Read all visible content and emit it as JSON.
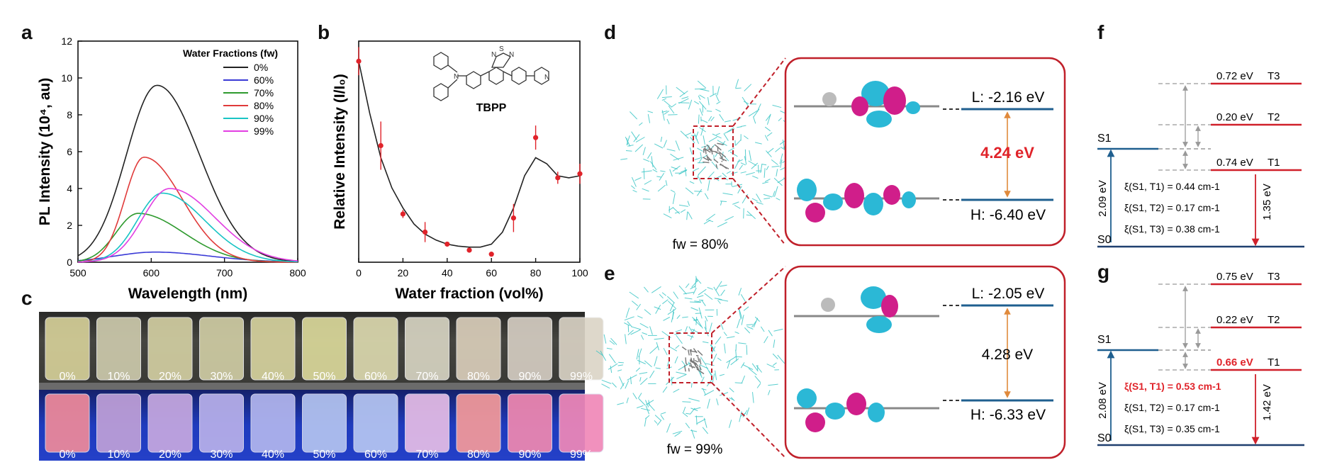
{
  "panel_labels": [
    "a",
    "b",
    "c",
    "d",
    "e",
    "f",
    "g"
  ],
  "chart_data": [
    {
      "type": "line",
      "panel": "a",
      "xlabel": "Wavelength (nm)",
      "ylabel": "PL Intensity (10⁴, au)",
      "xlim": [
        500,
        800
      ],
      "ylim": [
        0,
        12
      ],
      "xticks": [
        500,
        600,
        700,
        800
      ],
      "yticks": [
        0,
        2,
        4,
        6,
        8,
        10,
        12
      ],
      "legend_title": "Water Fractions (fw)",
      "series": [
        {
          "name": "0%",
          "color": "#222222",
          "peak_x": 608,
          "peak_y": 9.6,
          "sigma_l": 42,
          "sigma_r": 58
        },
        {
          "name": "60%",
          "color": "#3a3ad6",
          "peak_x": 605,
          "peak_y": 0.55,
          "sigma_l": 55,
          "sigma_r": 75
        },
        {
          "name": "70%",
          "color": "#2e9a2e",
          "peak_x": 582,
          "peak_y": 2.65,
          "sigma_l": 30,
          "sigma_r": 62
        },
        {
          "name": "80%",
          "color": "#e03a3a",
          "peak_x": 590,
          "peak_y": 5.7,
          "sigma_l": 26,
          "sigma_r": 52
        },
        {
          "name": "90%",
          "color": "#19c4c4",
          "peak_x": 615,
          "peak_y": 3.75,
          "sigma_l": 34,
          "sigma_r": 58
        },
        {
          "name": "99%",
          "color": "#e23ee2",
          "peak_x": 625,
          "peak_y": 4.0,
          "sigma_l": 36,
          "sigma_r": 62
        }
      ]
    },
    {
      "type": "scatter",
      "panel": "b",
      "xlabel": "Water fraction (vol%)",
      "ylabel": "Relative Intensity (I/I₀)",
      "xlim": [
        0,
        100
      ],
      "xticks": [
        0,
        20,
        40,
        60,
        80,
        100
      ],
      "ylim": [
        0,
        1.1
      ],
      "x": [
        0,
        10,
        20,
        30,
        40,
        50,
        60,
        70,
        80,
        90,
        100
      ],
      "y": [
        1.0,
        0.58,
        0.24,
        0.15,
        0.09,
        0.06,
        0.04,
        0.22,
        0.62,
        0.42,
        0.44
      ],
      "err": [
        0.07,
        0.12,
        0.02,
        0.05,
        0.01,
        0.01,
        0.01,
        0.07,
        0.06,
        0.03,
        0.05
      ],
      "fit_x": [
        0,
        5,
        10,
        15,
        20,
        25,
        30,
        35,
        40,
        45,
        50,
        55,
        60,
        65,
        70,
        75,
        80,
        85,
        90,
        95,
        100
      ],
      "fit_y": [
        1.0,
        0.74,
        0.52,
        0.37,
        0.27,
        0.19,
        0.14,
        0.11,
        0.09,
        0.08,
        0.075,
        0.075,
        0.09,
        0.15,
        0.27,
        0.43,
        0.52,
        0.49,
        0.43,
        0.42,
        0.43
      ],
      "compound": "TBPP"
    }
  ],
  "panel_c": {
    "labels": [
      "0%",
      "10%",
      "20%",
      "30%",
      "40%",
      "50%",
      "60%",
      "70%",
      "80%",
      "90%",
      "99%"
    ],
    "daylight_colors": [
      "#d8d29a",
      "#cfccae",
      "#d5d1a4",
      "#d2cfa6",
      "#d9d5a0",
      "#dddb9c",
      "#dedbb0",
      "#d9d6c4",
      "#dcd0bc",
      "#d7cfc4",
      "#dbd4c6"
    ],
    "uv_colors": [
      "#f08a9a",
      "#bfa0d8",
      "#c6a8e0",
      "#b8b0ea",
      "#b2b6ee",
      "#b4c4f0",
      "#b6c6f2",
      "#e6bde6",
      "#f59a9a",
      "#f088b0",
      "#f088b8"
    ]
  },
  "panel_d": {
    "fw": "fw = 80%",
    "lumo": "L: -2.16 eV",
    "homo": "H: -6.40 eV",
    "gap": "4.24 eV"
  },
  "panel_e": {
    "fw": "fw = 99%",
    "lumo": "L: -2.05 eV",
    "homo": "H: -6.33 eV",
    "gap": "4.28 eV"
  },
  "panel_f": {
    "T3": "0.72 eV",
    "T2": "0.20 eV",
    "T1": "0.74 eV",
    "T3_label": "T3",
    "T2_label": "T2",
    "T1_label": "T1",
    "S1": "S1",
    "S0": "S0",
    "s1_energy": "2.09 eV",
    "t1_energy": "1.35 eV",
    "xi1": "ξ(S1, T1) = 0.44 cm-1",
    "xi2": "ξ(S1, T2) = 0.17 cm-1",
    "xi3": "ξ(S1, T3) = 0.38 cm-1"
  },
  "panel_g": {
    "T3": "0.75 eV",
    "T2": "0.22 eV",
    "T1": "0.66 eV",
    "T3_label": "T3",
    "T2_label": "T2",
    "T1_label": "T1",
    "S1": "S1",
    "S0": "S0",
    "s1_energy": "2.08 eV",
    "t1_energy": "1.42 eV",
    "xi1": "ξ(S1, T1) = 0.53 cm-1",
    "xi2": "ξ(S1, T2) = 0.17 cm-1",
    "xi3": "ξ(S1, T3) = 0.35 cm-1"
  },
  "colors": {
    "red": "#e0232a",
    "blue": "#1f5f8f",
    "orange": "#e08a3c",
    "cyan": "#3cc6c6",
    "magenta": "#d01e8a",
    "gray": "#9a9a9a"
  }
}
